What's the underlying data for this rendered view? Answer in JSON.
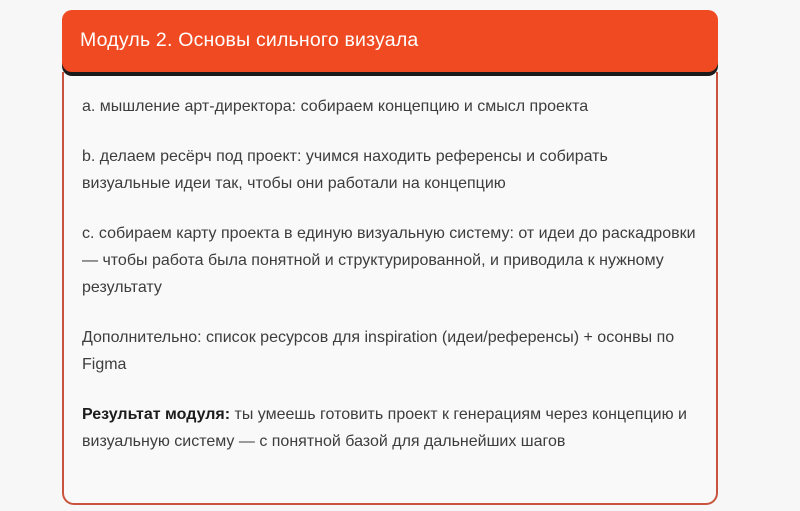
{
  "page": {
    "background_color": "#f7f7f8"
  },
  "module": {
    "header": {
      "title": "Модуль 2. Основы сильного визуала",
      "background_color": "#f04a22",
      "text_color": "#ffffff",
      "shadow_color": "#1b1b1b"
    },
    "body": {
      "background_color": "#f9f9fa",
      "border_color": "#c9543e",
      "text_color": "#3d3d3d",
      "points": [
        {
          "text": "a. мышление арт-директора: собираем концепцию и смысл проекта"
        },
        {
          "text": "b. делаем ресёрч под проект: учимся находить референсы и собирать визуальные идеи так, чтобы они работали на концепцию"
        },
        {
          "text": "c. собираем карту проекта в единую визуальную систему: от идеи до раскадровки — чтобы работа была понятной и структурированной, и приводила к нужному результату"
        },
        {
          "text": "Дополнительно: список ресурсов для inspiration (идеи/референсы) + осонвы по Figma"
        }
      ],
      "result": {
        "label": "Результат модуля:",
        "text": " ты умеешь готовить проект к генерациям через концепцию и визуальную систему — с понятной базой для дальнейших шагов"
      }
    }
  }
}
